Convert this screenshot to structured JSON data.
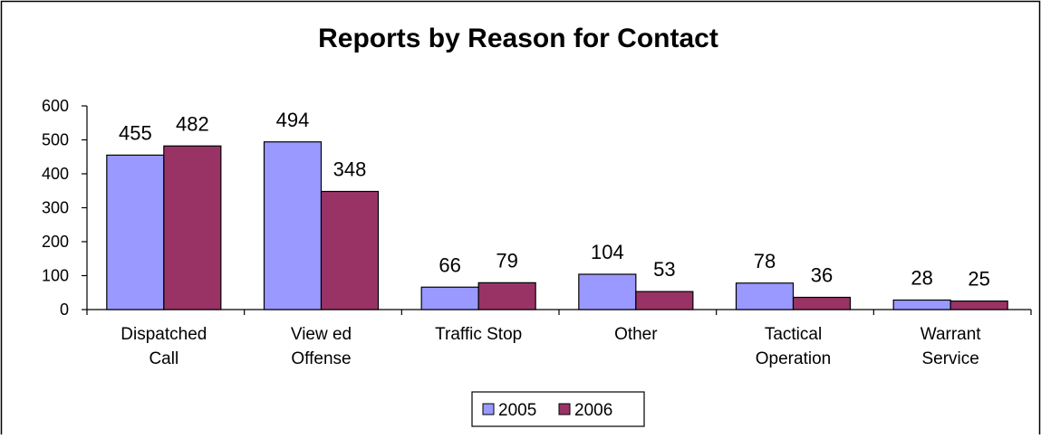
{
  "chart_data": {
    "type": "bar",
    "title": "Reports by Reason for Contact",
    "xlabel": "",
    "ylabel": "",
    "ylim": [
      0,
      600
    ],
    "yticks": [
      "0",
      "100",
      "200",
      "300",
      "400",
      "500",
      "600"
    ],
    "grid": false,
    "legend_position": "bottom",
    "categories": [
      [
        "Dispatched",
        "Call"
      ],
      [
        "View ed",
        "Offense"
      ],
      [
        "Traffic Stop"
      ],
      [
        "Other"
      ],
      [
        "Tactical",
        "Operation"
      ],
      [
        "Warrant",
        "Service"
      ]
    ],
    "series": [
      {
        "name": "2005",
        "values": [
          455,
          494,
          66,
          104,
          78,
          28
        ],
        "color": "#9999ff"
      },
      {
        "name": "2006",
        "values": [
          482,
          348,
          79,
          53,
          36,
          25
        ],
        "color": "#993366"
      }
    ]
  }
}
